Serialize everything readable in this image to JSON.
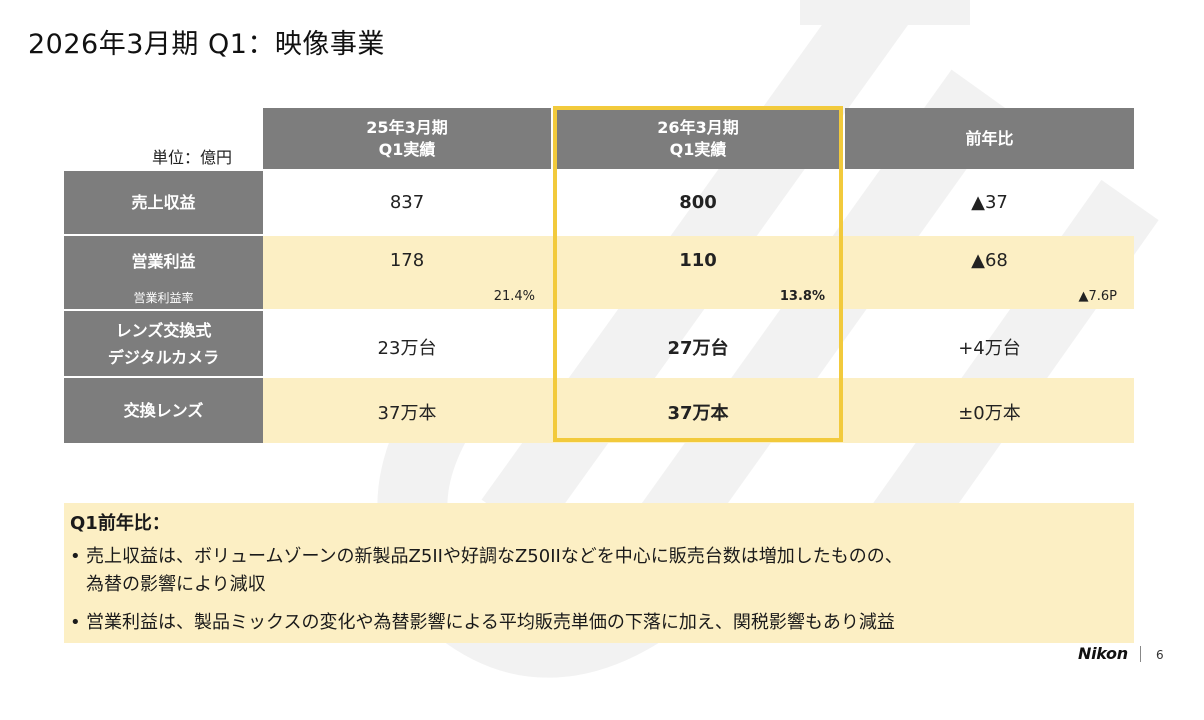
{
  "title": "2026年3月期 Q1：映像事業",
  "unit": "単位：億円",
  "columns": {
    "prev_line1": "25年3月期",
    "prev_line2": "Q1実績",
    "curr_line1": "26年3月期",
    "curr_line2": "Q1実績",
    "yoy": "前年比"
  },
  "rows": {
    "revenue": {
      "label": "売上収益",
      "prev": "837",
      "curr": "800",
      "yoy": "▲37"
    },
    "operating_profit": {
      "label": "営業利益",
      "prev": "178",
      "curr": "110",
      "yoy": "▲68"
    },
    "margin": {
      "label": "営業利益率",
      "prev": "21.4%",
      "curr": "13.8%",
      "yoy": "▲7.6P"
    },
    "ilc": {
      "label_line1": "レンズ交換式",
      "label_line2": "デジタルカメラ",
      "prev": "23万台",
      "curr": "27万台",
      "yoy": "+4万台"
    },
    "lenses": {
      "label": "交換レンズ",
      "prev": "37万本",
      "curr": "37万本",
      "yoy": "±0万本"
    }
  },
  "summary": {
    "title": "Q1前年比：",
    "bullet1_line1": "売上収益は、ボリュームゾーンの新製品Z5IIや好調なZ50IIなどを中心に販売台数は増加したものの、",
    "bullet1_line2": "為替の影響により減収",
    "bullet2": "営業利益は、製品ミックスの変化や為替影響による平均販売単価の下落に加え、関税影響もあり減益"
  },
  "footer": {
    "logo": "Nikon",
    "page_number": "6"
  },
  "colors": {
    "header_gray": "#7d7d7d",
    "band_yellow": "#fcefc4",
    "highlight": "#f2ca3c"
  }
}
